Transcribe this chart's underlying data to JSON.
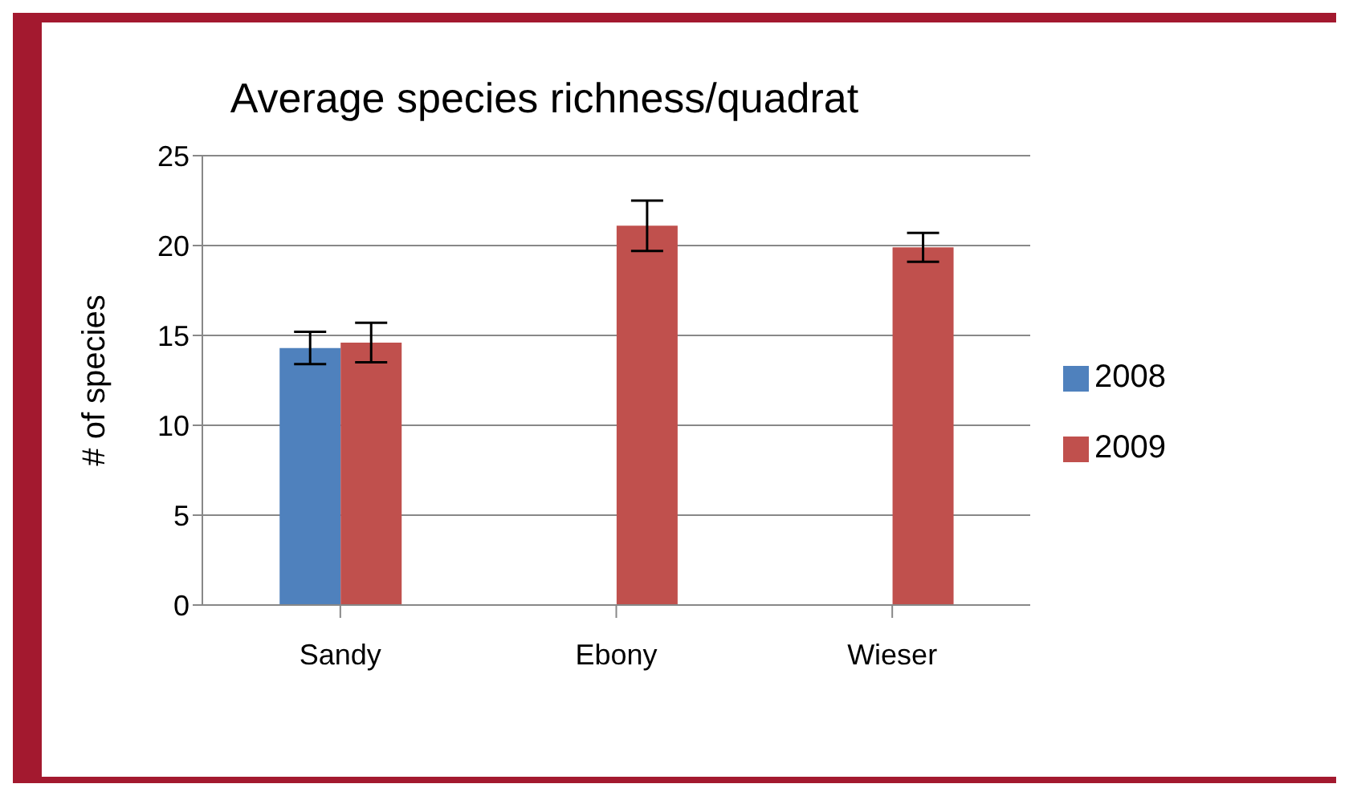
{
  "chart_data": {
    "type": "bar",
    "title": "Average species richness/quadrat",
    "ylabel": "# of species",
    "categories": [
      "Sandy",
      "Ebony",
      "Wieser"
    ],
    "series": [
      {
        "name": "2008",
        "color": "#4f81bd",
        "values": [
          14.3,
          null,
          null
        ],
        "errors": [
          0.9,
          null,
          null
        ]
      },
      {
        "name": "2009",
        "color": "#c0504d",
        "values": [
          14.6,
          21.1,
          19.9
        ],
        "errors": [
          1.1,
          1.4,
          0.8
        ]
      }
    ],
    "ylim": [
      0,
      25
    ],
    "yticks": [
      0,
      5,
      10,
      15,
      20,
      25
    ],
    "grid": "y",
    "legend": "right"
  }
}
